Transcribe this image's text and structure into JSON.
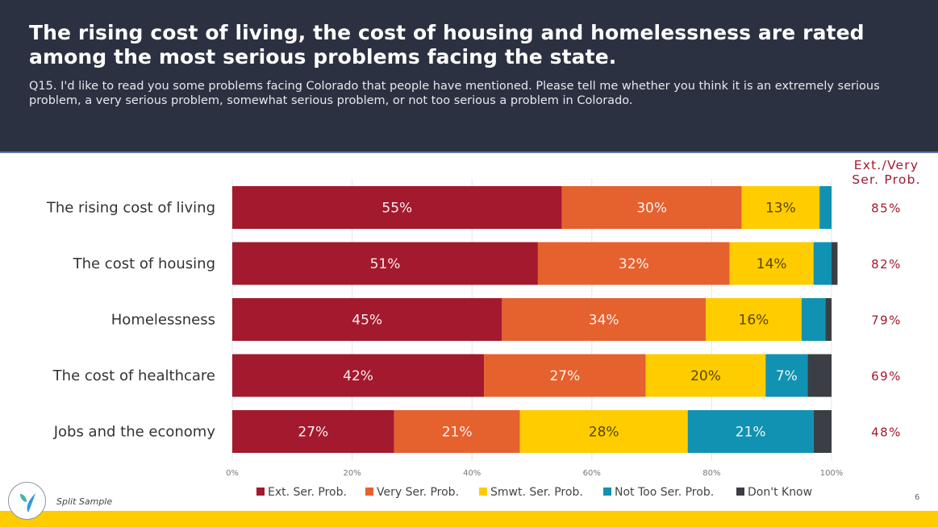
{
  "header": {
    "title": "The rising cost of living, the cost of housing and homelessness are rated among the most serious problems facing the state.",
    "subtitle": "Q15. I'd like to read you some problems facing Colorado that people have mentioned.  Please tell me whether you think it is an extremely serious problem, a very serious problem, somewhat serious problem, or not too serious a problem in Colorado."
  },
  "footer": {
    "note": "Split Sample",
    "page_number": "6"
  },
  "colors": {
    "ext": "#a3192e",
    "very": "#e5612e",
    "smwt": "#ffcc00",
    "not_too": "#1192b2",
    "dont_know": "#3b3e44",
    "summary_text": "#a3192e"
  },
  "chart_data": {
    "type": "bar",
    "orientation": "horizontal-stacked-100",
    "categories": [
      "The rising cost of living",
      "The cost of housing",
      "Homelessness",
      "The cost of healthcare",
      "Jobs and the economy"
    ],
    "series": [
      {
        "name": "Ext. Ser. Prob.",
        "key": "ext",
        "values": [
          55,
          51,
          45,
          42,
          27
        ],
        "labels": [
          "55%",
          "51%",
          "45%",
          "42%",
          "27%"
        ]
      },
      {
        "name": "Very Ser. Prob.",
        "key": "very",
        "values": [
          30,
          32,
          34,
          27,
          21
        ],
        "labels": [
          "30%",
          "32%",
          "34%",
          "27%",
          "21%"
        ]
      },
      {
        "name": "Smwt. Ser. Prob.",
        "key": "smwt",
        "values": [
          13,
          14,
          16,
          20,
          28
        ],
        "labels": [
          "13%",
          "14%",
          "16%",
          "20%",
          "28%"
        ]
      },
      {
        "name": "Not Too Ser. Prob.",
        "key": "not_too",
        "values": [
          2,
          3,
          4,
          7,
          21
        ],
        "labels": [
          "",
          "",
          "",
          "7%",
          "21%"
        ]
      },
      {
        "name": "Don't Know",
        "key": "dont_know",
        "values": [
          0,
          1,
          1,
          4,
          3
        ],
        "labels": [
          "",
          "",
          "",
          "",
          ""
        ]
      }
    ],
    "summary_header": [
      "Ext./Very",
      "Ser. Prob."
    ],
    "summary_values": [
      "85%",
      "82%",
      "79%",
      "69%",
      "48%"
    ],
    "x_ticks": [
      "0%",
      "20%",
      "40%",
      "60%",
      "80%",
      "100%"
    ],
    "xlim": [
      0,
      100
    ],
    "grid": true,
    "legend_position": "bottom",
    "title": "",
    "xlabel": "",
    "ylabel": ""
  }
}
